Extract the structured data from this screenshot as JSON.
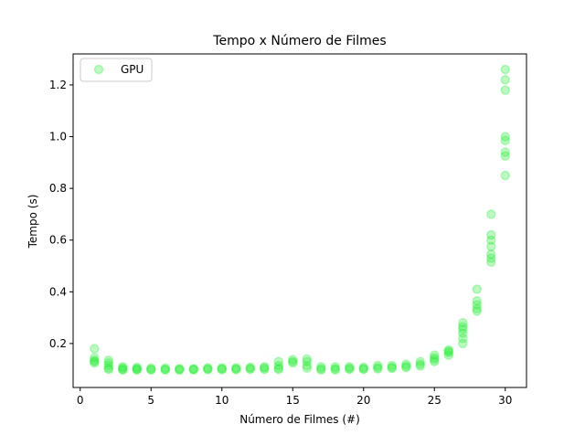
{
  "chart_data": {
    "type": "scatter",
    "title": "Tempo x Número de Filmes",
    "xlabel": "Número de Filmes (#)",
    "ylabel": "Tempo (s)",
    "xlim": [
      -0.5,
      31.5
    ],
    "ylim": [
      0.03,
      1.32
    ],
    "xticks": [
      "0",
      "5",
      "10",
      "15",
      "20",
      "25",
      "30"
    ],
    "yticks": [
      "0.2",
      "0.4",
      "0.6",
      "0.8",
      "1.0",
      "1.2"
    ],
    "grid": false,
    "legend_position": "top-left",
    "marker_color": "#22ee33",
    "series": [
      {
        "name": "GPU",
        "points": [
          [
            1,
            0.18
          ],
          [
            1,
            0.145
          ],
          [
            1,
            0.135
          ],
          [
            1,
            0.13
          ],
          [
            1,
            0.125
          ],
          [
            2,
            0.135
          ],
          [
            2,
            0.125
          ],
          [
            2,
            0.115
          ],
          [
            2,
            0.105
          ],
          [
            2,
            0.1
          ],
          [
            3,
            0.11
          ],
          [
            3,
            0.105
          ],
          [
            3,
            0.1
          ],
          [
            3,
            0.098
          ],
          [
            4,
            0.108
          ],
          [
            4,
            0.103
          ],
          [
            4,
            0.1
          ],
          [
            4,
            0.098
          ],
          [
            5,
            0.105
          ],
          [
            5,
            0.1
          ],
          [
            5,
            0.098
          ],
          [
            6,
            0.105
          ],
          [
            6,
            0.1
          ],
          [
            6,
            0.098
          ],
          [
            7,
            0.103
          ],
          [
            7,
            0.1
          ],
          [
            7,
            0.097
          ],
          [
            8,
            0.103
          ],
          [
            8,
            0.1
          ],
          [
            8,
            0.098
          ],
          [
            9,
            0.106
          ],
          [
            9,
            0.102
          ],
          [
            9,
            0.099
          ],
          [
            10,
            0.106
          ],
          [
            10,
            0.102
          ],
          [
            10,
            0.099
          ],
          [
            11,
            0.106
          ],
          [
            11,
            0.102
          ],
          [
            11,
            0.099
          ],
          [
            12,
            0.108
          ],
          [
            12,
            0.104
          ],
          [
            12,
            0.1
          ],
          [
            13,
            0.11
          ],
          [
            13,
            0.105
          ],
          [
            13,
            0.1
          ],
          [
            14,
            0.13
          ],
          [
            14,
            0.115
          ],
          [
            14,
            0.105
          ],
          [
            14,
            0.1
          ],
          [
            15,
            0.138
          ],
          [
            15,
            0.13
          ],
          [
            15,
            0.125
          ],
          [
            16,
            0.14
          ],
          [
            16,
            0.13
          ],
          [
            16,
            0.115
          ],
          [
            16,
            0.105
          ],
          [
            17,
            0.11
          ],
          [
            17,
            0.102
          ],
          [
            17,
            0.098
          ],
          [
            18,
            0.11
          ],
          [
            18,
            0.102
          ],
          [
            18,
            0.098
          ],
          [
            19,
            0.11
          ],
          [
            19,
            0.104
          ],
          [
            19,
            0.1
          ],
          [
            20,
            0.108
          ],
          [
            20,
            0.103
          ],
          [
            20,
            0.1
          ],
          [
            21,
            0.115
          ],
          [
            21,
            0.107
          ],
          [
            21,
            0.102
          ],
          [
            22,
            0.115
          ],
          [
            22,
            0.108
          ],
          [
            22,
            0.104
          ],
          [
            23,
            0.12
          ],
          [
            23,
            0.112
          ],
          [
            23,
            0.107
          ],
          [
            24,
            0.13
          ],
          [
            24,
            0.12
          ],
          [
            24,
            0.113
          ],
          [
            25,
            0.155
          ],
          [
            25,
            0.145
          ],
          [
            25,
            0.138
          ],
          [
            25,
            0.13
          ],
          [
            26,
            0.175
          ],
          [
            26,
            0.17
          ],
          [
            26,
            0.165
          ],
          [
            26,
            0.155
          ],
          [
            27,
            0.28
          ],
          [
            27,
            0.265
          ],
          [
            27,
            0.255
          ],
          [
            27,
            0.24
          ],
          [
            27,
            0.22
          ],
          [
            27,
            0.2
          ],
          [
            28,
            0.41
          ],
          [
            28,
            0.365
          ],
          [
            28,
            0.35
          ],
          [
            28,
            0.335
          ],
          [
            28,
            0.325
          ],
          [
            29,
            0.7
          ],
          [
            29,
            0.62
          ],
          [
            29,
            0.6
          ],
          [
            29,
            0.575
          ],
          [
            29,
            0.545
          ],
          [
            29,
            0.53
          ],
          [
            29,
            0.515
          ],
          [
            30,
            1.26
          ],
          [
            30,
            1.22
          ],
          [
            30,
            1.18
          ],
          [
            30,
            1.0
          ],
          [
            30,
            0.985
          ],
          [
            30,
            0.94
          ],
          [
            30,
            0.925
          ],
          [
            30,
            0.85
          ]
        ]
      }
    ]
  }
}
